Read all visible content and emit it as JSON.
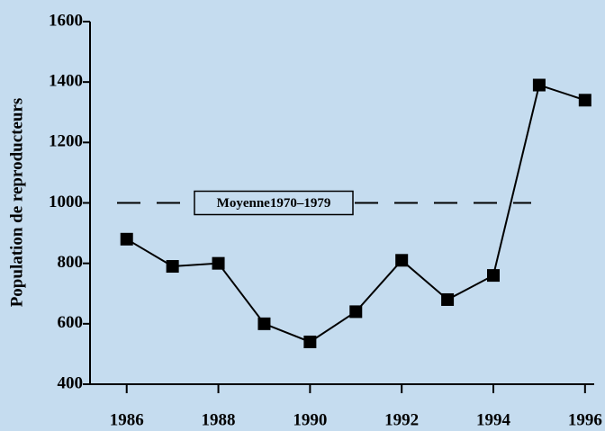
{
  "chart_data": {
    "type": "line",
    "y_label": "Population de reproducteurs",
    "x": [
      1986,
      1987,
      1988,
      1989,
      1990,
      1991,
      1992,
      1993,
      1994,
      1995,
      1996
    ],
    "series": [
      {
        "color": "#000000",
        "values": [
          880,
          790,
          800,
          600,
          540,
          640,
          810,
          680,
          760,
          1390,
          1340
        ]
      }
    ],
    "xlim": [
      1985.2,
      1996.2
    ],
    "xticks": [
      1986,
      1988,
      1990,
      1992,
      1994,
      1996
    ],
    "ylim": [
      400,
      1600
    ],
    "yticks": [
      400,
      600,
      800,
      1000,
      1200,
      1400,
      1600
    ],
    "reference_line": {
      "value": 1000,
      "label": "Moyenne1970–1979"
    }
  }
}
